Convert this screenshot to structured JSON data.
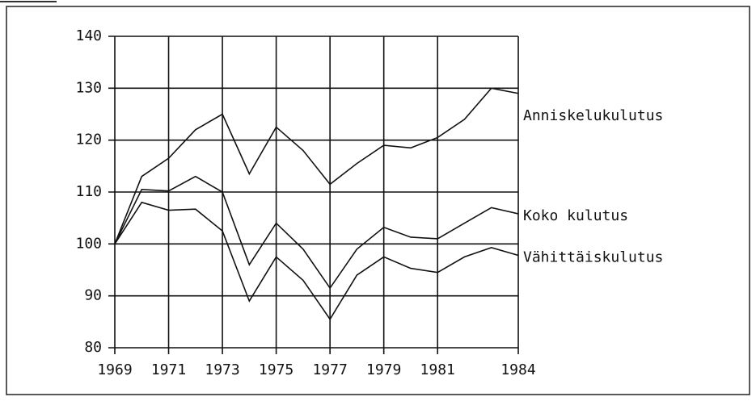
{
  "chart_data": {
    "type": "line",
    "x": [
      1969,
      1970,
      1971,
      1972,
      1973,
      1974,
      1975,
      1976,
      1977,
      1978,
      1979,
      1980,
      1981,
      1982,
      1983,
      1984
    ],
    "series": [
      {
        "name": "Anniskelukulutus",
        "color": "#111111",
        "values": [
          100,
          113,
          116.5,
          122,
          125,
          113.5,
          122.5,
          118,
          111.5,
          115.5,
          119,
          118.5,
          120.5,
          124,
          130,
          129
        ]
      },
      {
        "name": "Koko kulutus",
        "color": "#111111",
        "values": [
          100,
          110.5,
          110.2,
          113,
          110,
          96,
          104,
          99,
          91.5,
          99,
          103.2,
          101.3,
          101,
          104,
          107,
          105.8
        ]
      },
      {
        "name": "Vähittäiskulutus",
        "color": "#111111",
        "values": [
          100,
          108,
          106.5,
          106.7,
          102.5,
          89,
          97.5,
          93,
          85.5,
          94,
          97.5,
          95.3,
          94.5,
          97.5,
          99.3,
          97.8
        ]
      }
    ],
    "xlim": [
      1969,
      1984
    ],
    "xticks": [
      1969,
      1971,
      1973,
      1975,
      1977,
      1979,
      1981,
      1984
    ],
    "ylim": [
      80,
      140
    ],
    "yticks": [
      80,
      90,
      100,
      110,
      120,
      130,
      140
    ],
    "grid": true
  }
}
